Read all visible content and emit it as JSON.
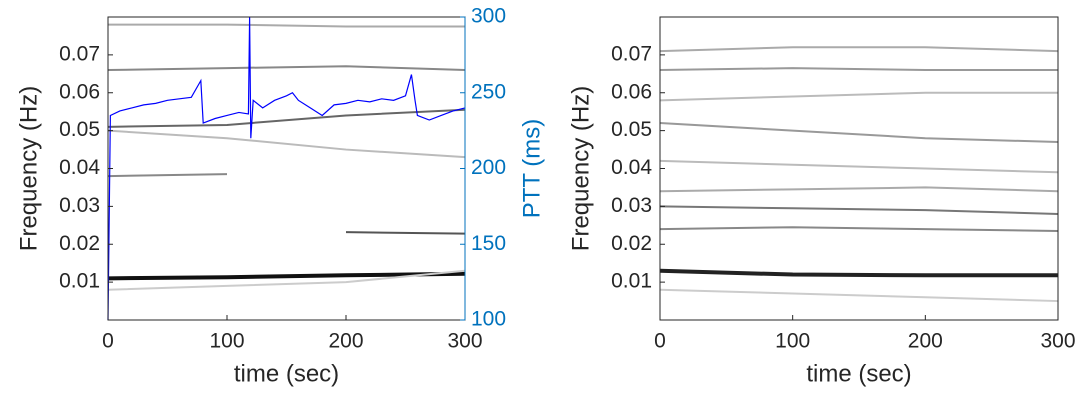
{
  "chart_data": [
    {
      "type": "line",
      "x_label": "time (sec)",
      "y_label": "Frequency (Hz)",
      "y2_label": "PTT (ms)",
      "y2_color": "#0072bd",
      "xlim": [
        0,
        300
      ],
      "xticks": [
        0,
        100,
        200,
        300
      ],
      "ylim": [
        0,
        0.08
      ],
      "yticks": [
        0.01,
        0.02,
        0.03,
        0.04,
        0.05,
        0.06,
        0.07
      ],
      "y2lim": [
        100,
        300
      ],
      "y2ticks": [
        100,
        150,
        200,
        250,
        300
      ],
      "ridge_x": [
        0,
        100,
        200,
        300
      ],
      "ridges": [
        {
          "color": "#111111",
          "values": [
            0.011,
            0.0113,
            0.0118,
            0.0122
          ]
        },
        {
          "color": "#cccccc",
          "values": [
            0.008,
            0.009,
            0.01,
            0.013
          ]
        },
        {
          "color": "#555555",
          "values": [
            0.0235,
            null,
            0.0232,
            0.0228
          ]
        },
        {
          "color": "#888888",
          "values": [
            0.038,
            0.0385,
            null,
            null
          ]
        },
        {
          "color": "#666666",
          "values": [
            0.051,
            0.0515,
            0.054,
            0.0555
          ]
        },
        {
          "color": "#bbbbbb",
          "values": [
            0.05,
            0.048,
            0.045,
            0.043
          ]
        },
        {
          "color": "#888888",
          "values": [
            0.066,
            0.0665,
            0.067,
            0.066
          ]
        },
        {
          "color": "#aaaaaa",
          "values": [
            0.078,
            0.078,
            0.0775,
            0.0775
          ]
        }
      ],
      "x": [
        0,
        2,
        10,
        20,
        30,
        40,
        50,
        60,
        70,
        78,
        80,
        90,
        100,
        110,
        118,
        119,
        120,
        122,
        130,
        140,
        150,
        155,
        160,
        170,
        180,
        190,
        200,
        210,
        220,
        230,
        240,
        250,
        255,
        258,
        260,
        270,
        280,
        290,
        300
      ],
      "series": [
        {
          "color": "#0000ff",
          "axis": "y2",
          "values": [
            100,
            235,
            238,
            240,
            242,
            243,
            245,
            246,
            247,
            258,
            230,
            233,
            235,
            237,
            236,
            300,
            220,
            245,
            240,
            245,
            248,
            250,
            245,
            240,
            235,
            242,
            243,
            245,
            244,
            246,
            245,
            248,
            262,
            245,
            235,
            232,
            235,
            238,
            240
          ]
        }
      ]
    },
    {
      "type": "line",
      "x_label": "time (sec)",
      "y_label": "Frequency (Hz)",
      "xlim": [
        0,
        300
      ],
      "xticks": [
        0,
        100,
        200,
        300
      ],
      "ylim": [
        0,
        0.08
      ],
      "yticks": [
        0.01,
        0.02,
        0.03,
        0.04,
        0.05,
        0.06,
        0.07
      ],
      "ridge_x": [
        0,
        100,
        200,
        300
      ],
      "ridges": [
        {
          "color": "#222222",
          "values": [
            0.013,
            0.012,
            0.0118,
            0.0118
          ]
        },
        {
          "color": "#cccccc",
          "values": [
            0.008,
            0.007,
            0.006,
            0.005
          ]
        },
        {
          "color": "#888888",
          "values": [
            0.024,
            0.0245,
            0.024,
            0.0235
          ]
        },
        {
          "color": "#777777",
          "values": [
            0.03,
            0.0295,
            0.029,
            0.028
          ]
        },
        {
          "color": "#aaaaaa",
          "values": [
            0.034,
            0.0345,
            0.035,
            0.034
          ]
        },
        {
          "color": "#bbbbbb",
          "values": [
            0.042,
            0.041,
            0.04,
            0.039
          ]
        },
        {
          "color": "#999999",
          "values": [
            0.052,
            0.05,
            0.048,
            0.047
          ]
        },
        {
          "color": "#bbbbbb",
          "values": [
            0.058,
            0.059,
            0.06,
            0.06
          ]
        },
        {
          "color": "#999999",
          "values": [
            0.066,
            0.0665,
            0.066,
            0.066
          ]
        },
        {
          "color": "#aaaaaa",
          "values": [
            0.071,
            0.072,
            0.072,
            0.071
          ]
        }
      ]
    }
  ]
}
